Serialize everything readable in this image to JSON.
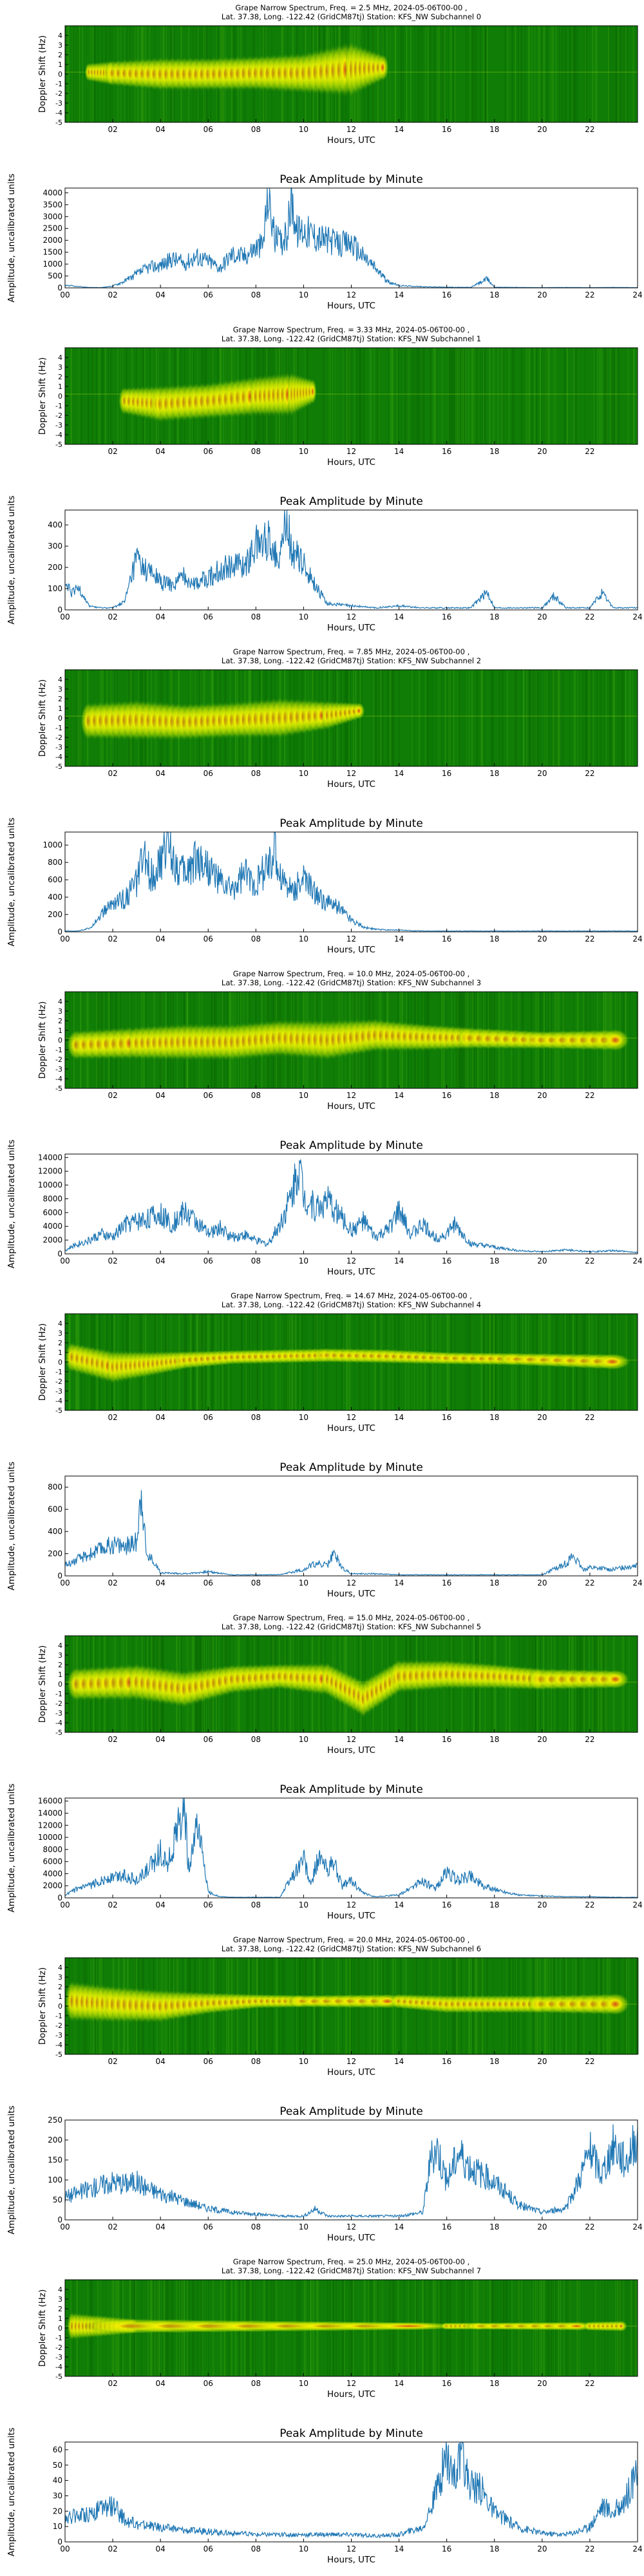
{
  "figure": {
    "peak_title": "Peak Amplitude by Minute",
    "xlabel": "Hours, UTC",
    "spec_ylabel": "Doppler Shift (Hz)",
    "peak_ylabel": "Amplitude, uncalibrated units",
    "spec_xticks": [
      "02",
      "04",
      "06",
      "08",
      "10",
      "12",
      "14",
      "16",
      "18",
      "20",
      "22"
    ],
    "spec_yticks": [
      "4",
      "3",
      "2",
      "1",
      "0",
      "-1",
      "-2",
      "-3",
      "-4",
      "-5"
    ],
    "peak_xticks": [
      "00",
      "02",
      "04",
      "06",
      "08",
      "10",
      "12",
      "14",
      "16",
      "18",
      "20",
      "22",
      "24"
    ],
    "colors": {
      "spec_bg": "#0f7d06",
      "spec_band": "#f3f000",
      "spec_core": "#e0441a",
      "line": "#1f77b4"
    }
  },
  "chart_data": [
    {
      "type": "heatmap",
      "title_line1": "Grape Narrow Spectrum, Freq. = 2.5 MHz, 2024-05-06T00-00 ,",
      "title_line2": "Lat. 37.38, Long. -122.42 (GridCM87tj) Station: KFS_NW Subchannel 0",
      "xlabel": "Hours, UTC",
      "ylabel": "Doppler Shift (Hz)",
      "xlim": [
        0,
        24
      ],
      "ylim": [
        -5,
        5
      ],
      "band": [
        [
          1,
          0.2,
          1.0
        ],
        [
          2,
          0.1,
          1.4
        ],
        [
          4,
          0.0,
          1.8
        ],
        [
          6,
          0.0,
          1.8
        ],
        [
          8,
          0.1,
          1.9
        ],
        [
          10,
          0.1,
          2.2
        ],
        [
          12,
          0.5,
          3.0
        ],
        [
          13.5,
          0.7,
          1.2
        ]
      ]
    },
    {
      "type": "line",
      "title": "Peak Amplitude by Minute",
      "xlabel": "Hours, UTC",
      "ylabel": "Amplitude, uncalibrated units",
      "xlim": [
        0,
        24
      ],
      "ylim": [
        0,
        4200
      ],
      "yticks": [
        0,
        500,
        1000,
        1500,
        2000,
        2500,
        3000,
        3500,
        4000
      ],
      "x": [
        0,
        0.5,
        1,
        1.5,
        2,
        2.5,
        3,
        3.5,
        4,
        4.5,
        5,
        5.5,
        6,
        6.5,
        7,
        7.5,
        8,
        8.3,
        8.5,
        8.8,
        9,
        9.3,
        9.5,
        9.7,
        10,
        10.5,
        11,
        11.5,
        12,
        12.5,
        13,
        13.5,
        14,
        15,
        16,
        17,
        17.7,
        18,
        19,
        20,
        21,
        22,
        23,
        24
      ],
      "y": [
        120,
        60,
        20,
        10,
        80,
        300,
        600,
        900,
        1000,
        1300,
        1100,
        1400,
        1200,
        900,
        1500,
        1400,
        1800,
        1900,
        4200,
        2200,
        2000,
        2300,
        4100,
        2500,
        2600,
        2300,
        2100,
        1900,
        2000,
        1400,
        900,
        300,
        100,
        50,
        30,
        20,
        400,
        30,
        20,
        10,
        20,
        10,
        20,
        10
      ]
    },
    {
      "type": "heatmap",
      "title_line1": "Grape Narrow Spectrum, Freq. = 3.33 MHz, 2024-05-06T00-00 ,",
      "title_line2": "Lat. 37.38, Long. -122.42 (GridCM87tj) Station: KFS_NW Subchannel 1",
      "xlabel": "Hours, UTC",
      "ylabel": "Doppler Shift (Hz)",
      "xlim": [
        0,
        24
      ],
      "ylim": [
        -5,
        5
      ],
      "band": [
        [
          2.5,
          -0.5,
          1.5
        ],
        [
          4,
          -0.8,
          2.0
        ],
        [
          6,
          -0.5,
          2.0
        ],
        [
          8,
          0.0,
          2.2
        ],
        [
          9.5,
          0.2,
          2.4
        ],
        [
          10.5,
          0.5,
          1.2
        ]
      ]
    },
    {
      "type": "line",
      "title": "Peak Amplitude by Minute",
      "xlabel": "Hours, UTC",
      "ylabel": "Amplitude, uncalibrated units",
      "xlim": [
        0,
        24
      ],
      "ylim": [
        0,
        470
      ],
      "yticks": [
        0,
        100,
        200,
        300,
        400
      ],
      "x": [
        0,
        0.3,
        0.6,
        1,
        1.5,
        2,
        2.5,
        3,
        3.3,
        3.6,
        4,
        4.5,
        5,
        5.5,
        6,
        6.5,
        7,
        7.5,
        8,
        8.5,
        9,
        9.3,
        9.5,
        10,
        10.5,
        11,
        12,
        13,
        14,
        15,
        16,
        17,
        17.7,
        18,
        19,
        20,
        20.5,
        21,
        22,
        22.5,
        23,
        24
      ],
      "y": [
        120,
        80,
        110,
        20,
        10,
        10,
        40,
        260,
        200,
        180,
        140,
        120,
        170,
        130,
        160,
        200,
        230,
        210,
        320,
        340,
        280,
        440,
        300,
        220,
        120,
        30,
        20,
        10,
        20,
        10,
        10,
        10,
        90,
        10,
        10,
        10,
        70,
        10,
        10,
        80,
        10,
        10
      ]
    },
    {
      "type": "heatmap",
      "title_line1": "Grape Narrow Spectrum, Freq. = 7.85 MHz, 2024-05-06T00-00 ,",
      "title_line2": "Lat. 37.38, Long. -122.42 (GridCM87tj) Station: KFS_NW Subchannel 2",
      "xlabel": "Hours, UTC",
      "ylabel": "Doppler Shift (Hz)",
      "xlim": [
        0,
        24
      ],
      "ylim": [
        -5,
        5
      ],
      "band": [
        [
          1,
          -0.3,
          2.0
        ],
        [
          3,
          -0.2,
          2.2
        ],
        [
          5,
          -0.4,
          2.0
        ],
        [
          7,
          -0.2,
          2.0
        ],
        [
          9,
          0.0,
          2.2
        ],
        [
          11,
          0.3,
          1.6
        ],
        [
          12.5,
          0.8,
          0.8
        ]
      ]
    },
    {
      "type": "line",
      "title": "Peak Amplitude by Minute",
      "xlabel": "Hours, UTC",
      "ylabel": "Amplitude, uncalibrated units",
      "xlim": [
        0,
        24
      ],
      "ylim": [
        0,
        1150
      ],
      "yticks": [
        0,
        200,
        400,
        600,
        800,
        1000
      ],
      "x": [
        0,
        0.5,
        1,
        1.5,
        2,
        2.5,
        3,
        3.3,
        3.6,
        4,
        4.3,
        4.6,
        5,
        5.5,
        6,
        6.5,
        7,
        7.5,
        8,
        8.5,
        8.8,
        9,
        9.5,
        10,
        10.5,
        11,
        11.5,
        12,
        12.5,
        13,
        14,
        15,
        16,
        18,
        20,
        22,
        24
      ],
      "y": [
        10,
        10,
        40,
        200,
        350,
        400,
        600,
        900,
        700,
        800,
        1150,
        850,
        700,
        900,
        800,
        600,
        500,
        700,
        600,
        800,
        950,
        700,
        500,
        650,
        450,
        350,
        300,
        150,
        60,
        30,
        20,
        10,
        10,
        10,
        10,
        10,
        10
      ]
    },
    {
      "type": "heatmap",
      "title_line1": "Grape Narrow Spectrum, Freq. = 10.0 MHz, 2024-05-06T00-00 ,",
      "title_line2": "Lat. 37.38, Long. -122.42 (GridCM87tj) Station: KFS_NW Subchannel 3",
      "xlabel": "Hours, UTC",
      "ylabel": "Doppler Shift (Hz)",
      "xlim": [
        0,
        24
      ],
      "ylim": [
        -5,
        5
      ],
      "band": [
        [
          0.5,
          -0.5,
          1.6
        ],
        [
          3,
          -0.3,
          1.8
        ],
        [
          5,
          -0.2,
          2.0
        ],
        [
          7,
          -0.2,
          2.0
        ],
        [
          9,
          0.2,
          2.0
        ],
        [
          11,
          0.0,
          2.2
        ],
        [
          13,
          0.5,
          1.8
        ],
        [
          15,
          0.3,
          1.5
        ],
        [
          17,
          0.2,
          1.2
        ],
        [
          20,
          0.0,
          1.0
        ],
        [
          23.5,
          0.0,
          1.2
        ]
      ]
    },
    {
      "type": "line",
      "title": "Peak Amplitude by Minute",
      "xlabel": "Hours, UTC",
      "ylabel": "Amplitude, uncalibrated units",
      "xlim": [
        0,
        24
      ],
      "ylim": [
        0,
        14500
      ],
      "yticks": [
        0,
        2000,
        4000,
        6000,
        8000,
        10000,
        12000,
        14000
      ],
      "x": [
        0,
        0.5,
        1,
        1.5,
        2,
        2.5,
        3,
        3.5,
        4,
        4.5,
        5,
        5.5,
        6,
        6.5,
        7,
        7.5,
        8,
        8.5,
        9,
        9.5,
        9.8,
        10,
        10.5,
        11,
        11.5,
        12,
        12.5,
        13,
        13.5,
        14,
        14.5,
        15,
        15.5,
        16,
        16.3,
        17,
        18,
        19,
        20,
        21,
        22,
        23,
        24
      ],
      "y": [
        500,
        1500,
        2000,
        3000,
        2500,
        4500,
        5000,
        5500,
        6000,
        4500,
        6500,
        5000,
        3000,
        4000,
        2500,
        3000,
        2000,
        1500,
        4500,
        9000,
        14000,
        9000,
        7000,
        8000,
        6000,
        3500,
        5000,
        2500,
        3500,
        6500,
        3000,
        4500,
        2500,
        3000,
        4500,
        1500,
        1000,
        500,
        300,
        600,
        300,
        500,
        200
      ]
    },
    {
      "type": "heatmap",
      "title_line1": "Grape Narrow Spectrum, Freq. = 14.67 MHz, 2024-05-06T00-00 ,",
      "title_line2": "Lat. 37.38, Long. -122.42 (GridCM87tj) Station: KFS_NW Subchannel 4",
      "xlabel": "Hours, UTC",
      "ylabel": "Doppler Shift (Hz)",
      "xlim": [
        0,
        24
      ],
      "ylim": [
        -5,
        5
      ],
      "band": [
        [
          0.3,
          0.5,
          1.6
        ],
        [
          2,
          -0.5,
          1.8
        ],
        [
          3.5,
          -0.2,
          1.4
        ],
        [
          5,
          0.2,
          1.0
        ],
        [
          7,
          0.5,
          0.8
        ],
        [
          9,
          0.6,
          0.8
        ],
        [
          11,
          0.7,
          0.8
        ],
        [
          13.5,
          0.6,
          0.8
        ],
        [
          16,
          0.4,
          0.7
        ],
        [
          19,
          0.3,
          0.7
        ],
        [
          23.5,
          0.0,
          0.9
        ]
      ]
    },
    {
      "type": "line",
      "title": "Peak Amplitude by Minute",
      "xlabel": "Hours, UTC",
      "ylabel": "Amplitude, uncalibrated units",
      "xlim": [
        0,
        24
      ],
      "ylim": [
        0,
        900
      ],
      "yticks": [
        0,
        200,
        400,
        600,
        800
      ],
      "x": [
        0,
        0.5,
        1,
        1.5,
        2,
        2.5,
        3,
        3.2,
        3.4,
        3.7,
        4,
        5,
        6,
        7,
        8,
        9,
        10,
        10.5,
        11,
        11.3,
        11.6,
        12,
        13,
        14,
        15,
        16,
        17,
        18,
        19,
        20,
        21,
        21.3,
        21.7,
        22,
        23,
        24
      ],
      "y": [
        100,
        150,
        200,
        250,
        300,
        280,
        320,
        860,
        200,
        150,
        30,
        20,
        40,
        10,
        10,
        10,
        60,
        120,
        100,
        220,
        80,
        20,
        20,
        10,
        10,
        10,
        10,
        10,
        10,
        10,
        120,
        190,
        60,
        80,
        60,
        110
      ]
    },
    {
      "type": "heatmap",
      "title_line1": "Grape Narrow Spectrum, Freq. = 15.0 MHz, 2024-05-06T00-00 ,",
      "title_line2": "Lat. 37.38, Long. -122.42 (GridCM87tj) Station: KFS_NW Subchannel 5",
      "xlabel": "Hours, UTC",
      "ylabel": "Doppler Shift (Hz)",
      "xlim": [
        0,
        24
      ],
      "ylim": [
        -5,
        5
      ],
      "band": [
        [
          0.5,
          0.0,
          1.8
        ],
        [
          3,
          0.2,
          2.0
        ],
        [
          5,
          -0.5,
          2.0
        ],
        [
          7,
          0.5,
          1.6
        ],
        [
          9,
          0.8,
          1.4
        ],
        [
          11,
          0.5,
          1.8
        ],
        [
          12.5,
          -1.5,
          2.0
        ],
        [
          14,
          0.8,
          1.8
        ],
        [
          16,
          1.0,
          1.6
        ],
        [
          18,
          0.8,
          1.4
        ],
        [
          20,
          0.5,
          1.2
        ],
        [
          23.5,
          0.5,
          1.0
        ]
      ]
    },
    {
      "type": "line",
      "title": "Peak Amplitude by Minute",
      "xlabel": "Hours, UTC",
      "ylabel": "Amplitude, uncalibrated units",
      "xlim": [
        0,
        24
      ],
      "ylim": [
        0,
        16500
      ],
      "yticks": [
        0,
        2000,
        4000,
        6000,
        8000,
        10000,
        12000,
        14000,
        16000
      ],
      "x": [
        0,
        0.5,
        1,
        1.5,
        2,
        2.5,
        3,
        3.5,
        4,
        4.3,
        4.6,
        5,
        5.2,
        5.5,
        5.8,
        6,
        6.5,
        7,
        8,
        9,
        10,
        10.3,
        10.6,
        11,
        11.3,
        11.6,
        12,
        12.5,
        13,
        14,
        15,
        15.5,
        16,
        16.5,
        17,
        17.5,
        18,
        19,
        20,
        21,
        22,
        23,
        24
      ],
      "y": [
        500,
        1500,
        2000,
        3000,
        3500,
        4000,
        3000,
        5000,
        8000,
        6000,
        10000,
        16000,
        4000,
        12000,
        7000,
        1000,
        200,
        100,
        100,
        100,
        7000,
        2000,
        7000,
        5000,
        6000,
        2000,
        3000,
        800,
        200,
        500,
        3000,
        1500,
        4500,
        3000,
        4000,
        2000,
        1500,
        500,
        300,
        200,
        200,
        100,
        100
      ]
    },
    {
      "type": "heatmap",
      "title_line1": "Grape Narrow Spectrum, Freq. = 20.0 MHz, 2024-05-06T00-00 ,",
      "title_line2": "Lat. 37.38, Long. -122.42 (GridCM87tj) Station: KFS_NW Subchannel 6",
      "xlabel": "Hours, UTC",
      "ylabel": "Doppler Shift (Hz)",
      "xlim": [
        0,
        24
      ],
      "ylim": [
        -5,
        5
      ],
      "band": [
        [
          0.3,
          0.5,
          2.2
        ],
        [
          2,
          0.2,
          2.0
        ],
        [
          4,
          0.0,
          1.8
        ],
        [
          6,
          0.3,
          1.2
        ],
        [
          8,
          0.5,
          0.8
        ],
        [
          10,
          0.5,
          0.7
        ],
        [
          14,
          0.5,
          0.8
        ],
        [
          16,
          0.2,
          1.0
        ],
        [
          18,
          0.2,
          1.0
        ],
        [
          20,
          0.2,
          1.0
        ],
        [
          23.5,
          0.2,
          1.2
        ]
      ]
    },
    {
      "type": "line",
      "title": "Peak Amplitude by Minute",
      "xlabel": "Hours, UTC",
      "ylabel": "Amplitude, uncalibrated units",
      "xlim": [
        0,
        24
      ],
      "ylim": [
        0,
        250
      ],
      "yticks": [
        0,
        50,
        100,
        150,
        200,
        250
      ],
      "x": [
        0,
        0.5,
        1,
        1.5,
        2,
        2.5,
        3,
        3.5,
        4,
        5,
        6,
        7,
        8,
        9,
        10,
        10.5,
        11,
        12,
        13,
        14,
        15,
        15.3,
        15.6,
        16,
        16.5,
        17,
        17.5,
        18,
        18.5,
        19,
        20,
        21,
        21.5,
        22,
        22.5,
        23,
        23.5,
        24
      ],
      "y": [
        60,
        70,
        80,
        90,
        100,
        95,
        100,
        80,
        70,
        50,
        30,
        20,
        15,
        10,
        10,
        30,
        10,
        10,
        10,
        10,
        20,
        150,
        190,
        100,
        180,
        140,
        120,
        100,
        70,
        40,
        20,
        30,
        100,
        180,
        120,
        200,
        150,
        230
      ]
    },
    {
      "type": "heatmap",
      "title_line1": "Grape Narrow Spectrum, Freq. = 25.0 MHz, 2024-05-06T00-00 ,",
      "title_line2": "Lat. 37.38, Long. -122.42 (GridCM87tj) Station: KFS_NW Subchannel 7",
      "xlabel": "Hours, UTC",
      "ylabel": "Doppler Shift (Hz)",
      "xlim": [
        0,
        24
      ],
      "ylim": [
        -5,
        5
      ],
      "band": [
        [
          0.3,
          0.2,
          1.5
        ],
        [
          1.5,
          0.2,
          1.2
        ],
        [
          3,
          0.2,
          0.8
        ],
        [
          16,
          0.2,
          0.4
        ],
        [
          17.5,
          0.2,
          0.4
        ],
        [
          22,
          0.2,
          0.5
        ],
        [
          23.5,
          0.2,
          0.6
        ]
      ]
    },
    {
      "type": "line",
      "title": "Peak Amplitude by Minute",
      "xlabel": "Hours, UTC",
      "ylabel": "Amplitude, uncalibrated units",
      "xlim": [
        0,
        24
      ],
      "ylim": [
        0,
        65
      ],
      "yticks": [
        0,
        10,
        20,
        30,
        40,
        50,
        60
      ],
      "x": [
        0,
        0.5,
        1,
        1.5,
        2,
        2.5,
        3,
        4,
        5,
        6,
        7,
        8,
        9,
        10,
        11,
        12,
        13,
        14,
        15,
        15.5,
        16,
        16.3,
        16.6,
        17,
        17.5,
        18,
        18.5,
        19,
        20,
        21,
        22,
        22.5,
        23,
        23.5,
        24
      ],
      "y": [
        15,
        18,
        20,
        22,
        25,
        15,
        12,
        10,
        8,
        7,
        6,
        5,
        5,
        5,
        5,
        5,
        4,
        5,
        10,
        30,
        60,
        45,
        55,
        40,
        35,
        20,
        15,
        10,
        6,
        5,
        10,
        25,
        20,
        30,
        45
      ]
    }
  ]
}
